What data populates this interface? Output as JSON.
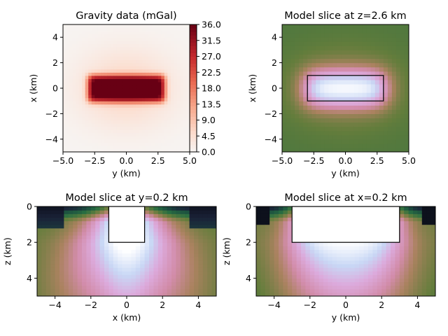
{
  "chart_data": [
    {
      "type": "heatmap",
      "id": "gravity",
      "title": "Gravity data (mGal)",
      "xlabel": "y (km)",
      "ylabel": "x (km)",
      "xlim": [
        -5,
        5
      ],
      "ylim": [
        -5,
        5
      ],
      "xticks": [
        -5,
        -2.5,
        0,
        2.5,
        5
      ],
      "xtick_labels": [
        "−5.0",
        "−2.5",
        "0.0",
        "2.5",
        "5.0"
      ],
      "yticks": [
        -4,
        -2,
        0,
        2,
        4
      ],
      "ytick_labels": [
        "−4",
        "−2",
        "0",
        "2",
        "4"
      ],
      "colormap": "Reds",
      "source_prism": {
        "y": [
          -3,
          3
        ],
        "x": [
          -1,
          1
        ]
      },
      "value_range": [
        0,
        36
      ],
      "colorbar": {
        "ticks": [
          0,
          4.5,
          9,
          13.5,
          18,
          22.5,
          27,
          31.5,
          36
        ],
        "tick_labels": [
          "0.0",
          "4.5",
          "9.0",
          "13.5",
          "18.0",
          "22.5",
          "27.0",
          "31.5",
          "36.0"
        ]
      }
    },
    {
      "type": "heatmap",
      "id": "slice-z",
      "title": "Model slice at z=2.6 km",
      "xlabel": "y (km)",
      "ylabel": "x (km)",
      "xlim": [
        -5,
        5
      ],
      "ylim": [
        -5,
        5
      ],
      "xticks": [
        -5,
        -2.5,
        0,
        2.5,
        5
      ],
      "xtick_labels": [
        "−5.0",
        "−2.5",
        "0.0",
        "2.5",
        "5.0"
      ],
      "yticks": [
        -4,
        -2,
        0,
        2,
        4
      ],
      "ytick_labels": [
        "−4",
        "−2",
        "0",
        "2",
        "4"
      ],
      "colormap": "cubehelix",
      "outline": {
        "y": [
          -3,
          3
        ],
        "x": [
          -1,
          1
        ]
      }
    },
    {
      "type": "heatmap",
      "id": "slice-y",
      "title": "Model slice at y=0.2 km",
      "xlabel": "x (km)",
      "ylabel": "z (km)",
      "xlim": [
        -5,
        5
      ],
      "ylim": [
        5,
        0
      ],
      "xticks": [
        -4,
        -2,
        0,
        2,
        4
      ],
      "xtick_labels": [
        "−4",
        "−2",
        "0",
        "2",
        "4"
      ],
      "yticks": [
        0,
        2,
        4
      ],
      "ytick_labels": [
        "0",
        "2",
        "4"
      ],
      "colormap": "cubehelix",
      "outline": {
        "x": [
          -1,
          1
        ],
        "z": [
          0,
          2
        ]
      }
    },
    {
      "type": "heatmap",
      "id": "slice-x",
      "title": "Model slice at x=0.2 km",
      "xlabel": "y (km)",
      "ylabel": "z (km)",
      "xlim": [
        -5,
        5
      ],
      "ylim": [
        5,
        0
      ],
      "xticks": [
        -4,
        -2,
        0,
        2,
        4
      ],
      "xtick_labels": [
        "−4",
        "−2",
        "0",
        "2",
        "4"
      ],
      "yticks": [
        0,
        2,
        4
      ],
      "ytick_labels": [
        "0",
        "2",
        "4"
      ],
      "colormap": "cubehelix",
      "outline": {
        "y": [
          -3,
          3
        ],
        "z": [
          0,
          2
        ]
      }
    }
  ]
}
